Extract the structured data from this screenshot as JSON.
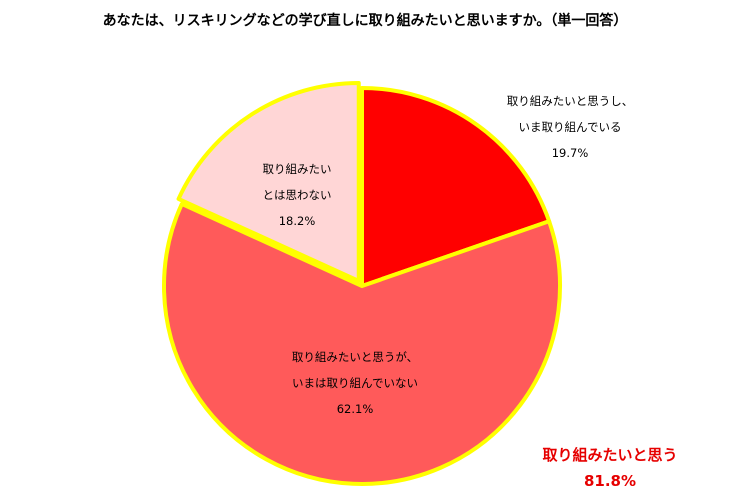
{
  "chart_data": {
    "type": "pie",
    "title": "あなたは、リスキリングなどの学び直しに取り組みたいと思いますか。（単一回答）",
    "slices": [
      {
        "label_lines": [
          "取り組みたいと思うし、",
          "いま取り組んでいる"
        ],
        "value": 19.7,
        "value_label": "19.7%",
        "color": "#ff0000"
      },
      {
        "label_lines": [
          "取り組みたいと思うが、",
          "いまは取り組んでいない"
        ],
        "value": 62.1,
        "value_label": "62.1%",
        "color": "#ff5a5a"
      },
      {
        "label_lines": [
          "取り組みたい",
          "とは思わない"
        ],
        "value": 18.2,
        "value_label": "18.2%",
        "color": "#ffd6d6"
      }
    ],
    "outline_color": "#ffff00",
    "summary": {
      "label": "取り組みたいと思う",
      "value_label": "81.8%"
    }
  }
}
